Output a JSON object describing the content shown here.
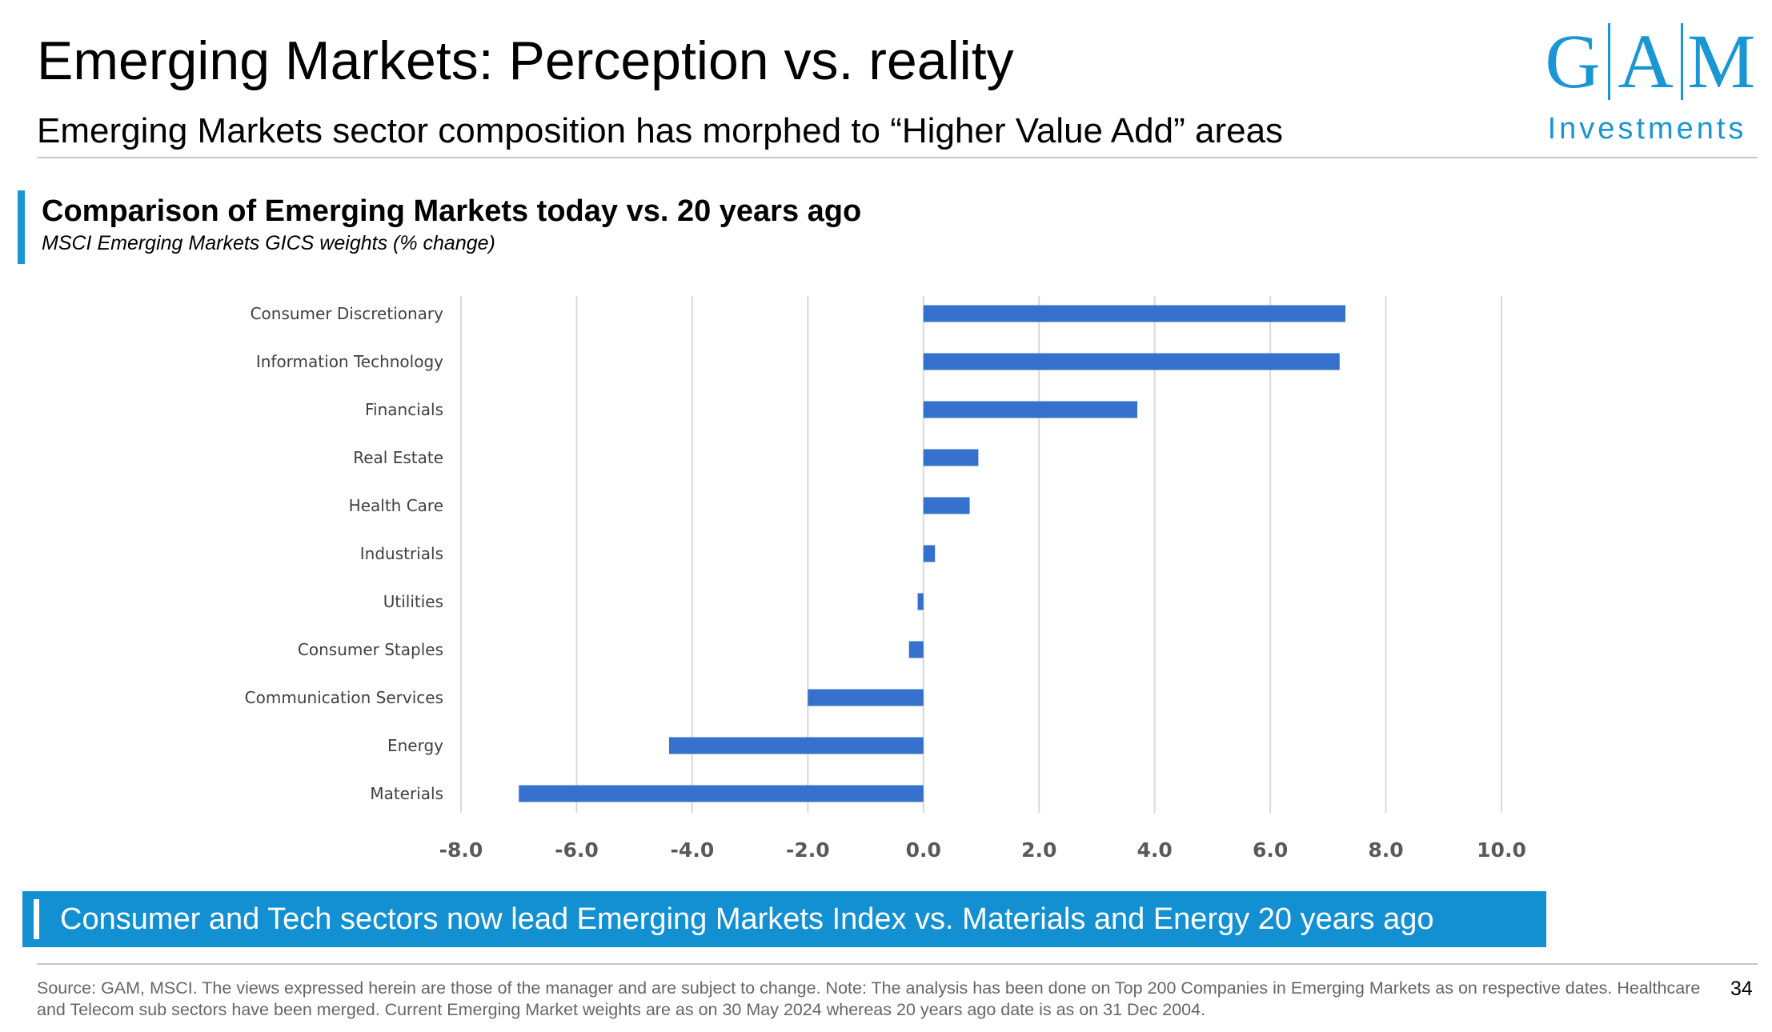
{
  "header": {
    "title": "Emerging Markets: Perception vs. reality",
    "subtitle": "Emerging Markets sector composition has morphed to “Higher Value Add” areas"
  },
  "logo": {
    "letters": [
      "G",
      "A",
      "M"
    ],
    "subtitle": "Investments",
    "color": "#1a96d4"
  },
  "section": {
    "title": "Comparison of Emerging Markets today vs. 20 years ago",
    "subtitle": "MSCI Emerging Markets GICS weights (% change)"
  },
  "chart_data": {
    "type": "bar",
    "orientation": "horizontal",
    "categories": [
      "Consumer Discretionary",
      "Information Technology",
      "Financials",
      "Real Estate",
      "Health Care",
      "Industrials",
      "Utilities",
      "Consumer Staples",
      "Communication Services",
      "Energy",
      "Materials"
    ],
    "values": [
      7.3,
      7.2,
      3.7,
      0.95,
      0.8,
      0.2,
      -0.1,
      -0.25,
      -2.0,
      -4.4,
      -7.0
    ],
    "xlim": [
      -8.0,
      10.0
    ],
    "xticks": [
      "-8.0",
      "-6.0",
      "-4.0",
      "-2.0",
      "0.0",
      "2.0",
      "4.0",
      "6.0",
      "8.0",
      "10.0"
    ],
    "bar_color": "#3571cc",
    "grid": "vertical",
    "legend": "none",
    "title": "",
    "xlabel": "",
    "ylabel": ""
  },
  "callout": {
    "text": "Consumer and Tech sectors now lead Emerging Markets Index vs. Materials and Energy 20 years ago",
    "color": "#1390d2"
  },
  "footer": {
    "source": "Source: GAM, MSCI. The views expressed herein are those of the manager and are subject to change. Note: The analysis has been done on Top 200 Companies in Emerging Markets as on respective dates. Healthcare and Telecom sub sectors have been merged. Current Emerging Market weights are as on 30 May 2024 whereas 20 years ago date is as on 31 Dec 2004.",
    "page_number": "34"
  }
}
